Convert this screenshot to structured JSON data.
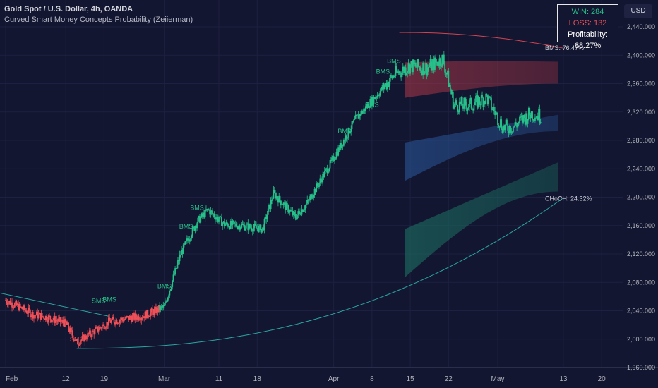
{
  "header": {
    "title": "Gold Spot / U.S. Dollar, 4h, OANDA",
    "subtitle": "Curved Smart Money Concepts Probability (Zeiierman)"
  },
  "stats": {
    "win": "WIN: 284",
    "loss": "LOSS: 132",
    "profitability": "Profitability: 68.27%"
  },
  "currency": "USD",
  "colors": {
    "background": "#131630",
    "bull": "#26c08a",
    "bear": "#f05058",
    "bms_zone": "#b03848",
    "choch_zone": "#1c7a68",
    "mid_zone": "#2a5aa0",
    "trend_line": "#2aa6a0"
  },
  "chart_data": {
    "type": "candlestick",
    "timeframe": "4h",
    "x_ticks": [
      "Feb",
      "12",
      "19",
      "Mar",
      "11",
      "18",
      "Apr",
      "8",
      "15",
      "22",
      "May",
      "13",
      "20"
    ],
    "y_ticks": [
      "2,440.000",
      "2,400.000",
      "2,360.000",
      "2,320.000",
      "2,280.000",
      "2,240.000",
      "2,200.000",
      "2,160.000",
      "2,120.000",
      "2,080.000",
      "2,040.000",
      "2,000.000",
      "1,960.000"
    ],
    "ylim": [
      1960,
      2440
    ],
    "price_path": [
      {
        "date": "Feb 1",
        "price": 2055
      },
      {
        "date": "Feb 6",
        "price": 2035
      },
      {
        "date": "Feb 9",
        "price": 2030
      },
      {
        "date": "Feb 12",
        "price": 2022
      },
      {
        "date": "Feb 14",
        "price": 1995
      },
      {
        "date": "Feb 17",
        "price": 2010
      },
      {
        "date": "Feb 20",
        "price": 2025
      },
      {
        "date": "Feb 26",
        "price": 2033
      },
      {
        "date": "Mar 1",
        "price": 2045
      },
      {
        "date": "Mar 4",
        "price": 2120
      },
      {
        "date": "Mar 7",
        "price": 2165
      },
      {
        "date": "Mar 9",
        "price": 2182
      },
      {
        "date": "Mar 12",
        "price": 2162
      },
      {
        "date": "Mar 15",
        "price": 2160
      },
      {
        "date": "Mar 19",
        "price": 2155
      },
      {
        "date": "Mar 21",
        "price": 2205
      },
      {
        "date": "Mar 25",
        "price": 2172
      },
      {
        "date": "Mar 27",
        "price": 2190
      },
      {
        "date": "Apr 1",
        "price": 2255
      },
      {
        "date": "Apr 5",
        "price": 2310
      },
      {
        "date": "Apr 9",
        "price": 2345
      },
      {
        "date": "Apr 12",
        "price": 2372
      },
      {
        "date": "Apr 15",
        "price": 2385
      },
      {
        "date": "Apr 18",
        "price": 2382
      },
      {
        "date": "Apr 21",
        "price": 2395
      },
      {
        "date": "Apr 23",
        "price": 2330
      },
      {
        "date": "Apr 26",
        "price": 2330
      },
      {
        "date": "Apr 29",
        "price": 2340
      },
      {
        "date": "May 2",
        "price": 2298
      },
      {
        "date": "May 4",
        "price": 2300
      },
      {
        "date": "May 7",
        "price": 2318
      },
      {
        "date": "May 9",
        "price": 2315
      }
    ],
    "annotations": [
      {
        "text": "SMS",
        "date": "Feb 18",
        "price": 2051,
        "color": "bull"
      },
      {
        "text": "BMS",
        "date": "Feb 20",
        "price": 2053,
        "color": "bull"
      },
      {
        "text": "SMS",
        "date": "Feb 14",
        "price": 1997,
        "color": "bear"
      },
      {
        "text": "BMS",
        "date": "Mar 1",
        "price": 2072,
        "color": "bull"
      },
      {
        "text": "BMS",
        "date": "Mar 5",
        "price": 2156,
        "color": "bull"
      },
      {
        "text": "BMS",
        "date": "Mar 7",
        "price": 2182,
        "color": "bull"
      },
      {
        "text": "BMS",
        "date": "Apr 3",
        "price": 2290,
        "color": "bull"
      },
      {
        "text": "BMS",
        "date": "Apr 8",
        "price": 2327,
        "color": "bull"
      },
      {
        "text": "BMS",
        "date": "Apr 10",
        "price": 2374,
        "color": "bull"
      },
      {
        "text": "BMS",
        "date": "Apr 12",
        "price": 2389,
        "color": "bull"
      }
    ],
    "probability_labels": [
      {
        "text": "BMS: 76.47%",
        "date": "May 13",
        "price": 2410
      },
      {
        "text": "CHoCH: 24.32%",
        "date": "May 13",
        "price": 2198
      }
    ],
    "zones": [
      {
        "name": "bms",
        "start": "Apr 14",
        "end": "May 12",
        "top": [
          2390,
          2392
        ],
        "bottom": [
          2340,
          2360
        ]
      },
      {
        "name": "mid",
        "start": "Apr 14",
        "end": "May 12",
        "top": [
          2277,
          2316
        ],
        "bottom": [
          2223,
          2293
        ]
      },
      {
        "name": "choch",
        "start": "Apr 14",
        "end": "May 12",
        "top": [
          2155,
          2249
        ],
        "bottom": [
          2087,
          2208
        ]
      }
    ]
  }
}
